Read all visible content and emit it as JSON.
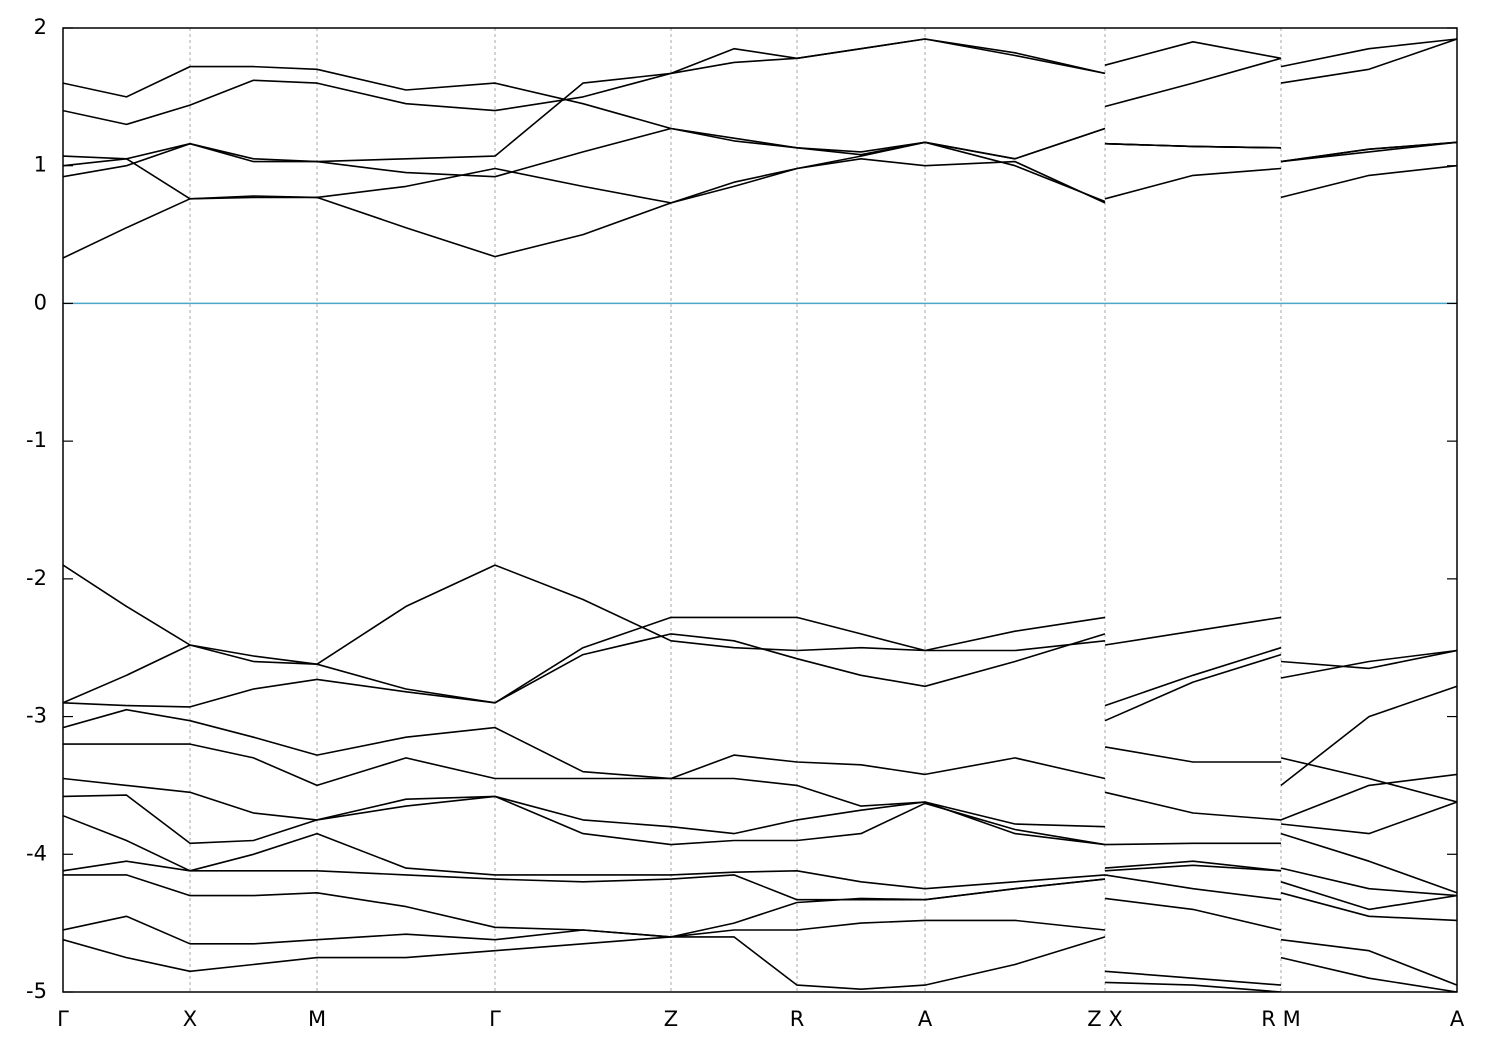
{
  "chart_data": {
    "type": "line",
    "color": "#000000",
    "zero_line_color": "#4aa8c8",
    "grid": true,
    "x": [
      0,
      0.635,
      1.27,
      1.905,
      2.54,
      3.43,
      4.32,
      5.2,
      6.08,
      6.71,
      7.34,
      7.98,
      8.62,
      9.52,
      10.42,
      10.42,
      10.42,
      11.3,
      12.18,
      12.18,
      12.18,
      13.06,
      13.94
    ],
    "xlim": [
      0,
      13.94
    ],
    "ylim": [
      -5,
      2
    ],
    "yticks": [
      -5,
      -4,
      -3,
      -2,
      -1,
      0,
      1,
      2
    ],
    "xticks": [
      {
        "value": 0,
        "label": "Γ"
      },
      {
        "value": 1.27,
        "label": "X"
      },
      {
        "value": 2.54,
        "label": "M"
      },
      {
        "value": 4.32,
        "label": "Γ"
      },
      {
        "value": 6.08,
        "label": "Z"
      },
      {
        "value": 7.34,
        "label": "R"
      },
      {
        "value": 8.62,
        "label": "A"
      },
      {
        "value": 10.42,
        "label": "Z X"
      },
      {
        "value": 12.18,
        "label": "R M"
      },
      {
        "value": 13.94,
        "label": "A"
      }
    ],
    "series": [
      {
        "values": [
          0.33,
          0.55,
          0.76,
          0.77,
          0.77,
          0.55,
          0.34,
          0.5,
          0.73,
          0.85,
          0.98,
          1.05,
          1.0,
          1.03,
          0.73,
          null,
          0.76,
          0.93,
          0.98,
          null,
          0.77,
          0.93,
          1.0
        ]
      },
      {
        "values": [
          0.92,
          1.0,
          1.16,
          1.03,
          1.03,
          0.95,
          0.92,
          1.1,
          1.27,
          1.18,
          1.13,
          1.08,
          1.17,
          1.05,
          1.27,
          null,
          1.16,
          1.14,
          1.13,
          null,
          1.03,
          1.12,
          1.17
        ]
      },
      {
        "values": [
          1.0,
          1.05,
          0.76,
          0.78,
          0.77,
          0.85,
          0.98,
          0.85,
          0.73,
          0.88,
          0.98,
          1.07,
          1.17,
          1.0,
          0.74,
          null,
          1.16,
          1.14,
          1.13,
          null,
          1.03,
          1.1,
          1.17
        ]
      },
      {
        "values": [
          1.07,
          1.05,
          1.16,
          1.05,
          1.03,
          1.05,
          1.07,
          1.6,
          1.67,
          1.75,
          1.78,
          1.85,
          1.92,
          1.82,
          1.67,
          null,
          1.43,
          1.6,
          1.78,
          null,
          1.6,
          1.7,
          1.92
        ]
      },
      {
        "values": [
          1.4,
          1.3,
          1.44,
          1.62,
          1.6,
          1.45,
          1.4,
          1.5,
          1.67,
          1.85,
          1.78,
          1.85,
          1.92,
          1.8,
          1.67,
          null,
          1.73,
          1.9,
          1.78,
          null,
          1.72,
          1.85,
          1.92
        ]
      },
      {
        "values": [
          1.6,
          1.5,
          1.72,
          1.72,
          1.7,
          1.55,
          1.6,
          1.45,
          1.27,
          1.2,
          1.13,
          1.1,
          1.17,
          1.05,
          1.27,
          null,
          1.16,
          1.14,
          1.13,
          null,
          1.03,
          1.12,
          1.17
        ]
      },
      {
        "values": [
          -1.9,
          -2.2,
          -2.48,
          -2.56,
          -2.62,
          -2.2,
          -1.9,
          -2.15,
          -2.45,
          -2.5,
          -2.52,
          -2.5,
          -2.52,
          -2.38,
          -2.28,
          null,
          -2.48,
          -2.38,
          -2.28,
          null,
          -2.6,
          -2.65,
          -2.52
        ]
      },
      {
        "values": [
          -2.9,
          -2.7,
          -2.48,
          -2.6,
          -2.62,
          -2.8,
          -2.9,
          -2.5,
          -2.28,
          -2.28,
          -2.28,
          -2.4,
          -2.52,
          -2.52,
          -2.45,
          null,
          -2.92,
          -2.7,
          -2.5,
          null,
          -2.72,
          -2.6,
          -2.52
        ]
      },
      {
        "values": [
          -2.9,
          -2.92,
          -2.93,
          -2.8,
          -2.73,
          -2.82,
          -2.9,
          -2.55,
          -2.4,
          -2.45,
          -2.58,
          -2.7,
          -2.78,
          -2.6,
          -2.4,
          null,
          -3.03,
          -2.75,
          -2.55,
          null,
          -3.5,
          -3.0,
          -2.78
        ]
      },
      {
        "values": [
          -3.08,
          -2.95,
          -3.03,
          -3.15,
          -3.28,
          -3.15,
          -3.08,
          -3.4,
          -3.45,
          -3.28,
          -3.33,
          -3.35,
          -3.42,
          -3.3,
          -3.45,
          null,
          -3.22,
          -3.33,
          -3.33,
          null,
          -3.3,
          -3.45,
          -3.62
        ]
      },
      {
        "values": [
          -3.2,
          -3.2,
          -3.2,
          -3.3,
          -3.5,
          -3.3,
          -3.45,
          -3.45,
          -3.45,
          -3.45,
          -3.5,
          -3.65,
          -3.62,
          -3.78,
          -3.8,
          null,
          -3.55,
          -3.7,
          -3.75,
          null,
          -3.75,
          -3.5,
          -3.42
        ]
      },
      {
        "values": [
          -3.45,
          -3.5,
          -3.55,
          -3.7,
          -3.75,
          -3.6,
          -3.58,
          -3.75,
          -3.8,
          -3.85,
          -3.75,
          -3.68,
          -3.62,
          -3.85,
          -3.93,
          null,
          -3.93,
          -3.92,
          -3.92,
          null,
          -3.78,
          -3.85,
          -3.62
        ]
      },
      {
        "values": [
          -3.58,
          -3.57,
          -3.92,
          -3.9,
          -3.75,
          -3.65,
          -3.58,
          -3.85,
          -3.93,
          -3.9,
          -3.9,
          -3.85,
          -3.63,
          -3.82,
          -3.93,
          null,
          -4.1,
          -4.05,
          -4.12,
          null,
          -3.85,
          -4.05,
          -4.28
        ]
      },
      {
        "values": [
          -3.72,
          -3.9,
          -4.12,
          -4.0,
          -3.85,
          -4.1,
          -4.15,
          -4.15,
          -4.15,
          -4.13,
          -4.12,
          -4.2,
          -4.25,
          -4.2,
          -4.15,
          null,
          -4.15,
          -4.25,
          -4.33,
          null,
          -4.1,
          -4.25,
          -4.3
        ]
      },
      {
        "values": [
          -4.12,
          -4.05,
          -4.12,
          -4.12,
          -4.12,
          -4.15,
          -4.18,
          -4.2,
          -4.18,
          -4.15,
          -4.33,
          -4.33,
          -4.33,
          -4.25,
          -4.18,
          null,
          -4.32,
          -4.4,
          -4.55,
          null,
          -4.28,
          -4.45,
          -4.48
        ]
      },
      {
        "values": [
          -4.15,
          -4.15,
          -4.3,
          -4.3,
          -4.28,
          -4.38,
          -4.53,
          -4.55,
          -4.6,
          -4.55,
          -4.55,
          -4.5,
          -4.48,
          -4.48,
          -4.55,
          null,
          -4.85,
          -4.9,
          -4.95,
          null,
          -4.62,
          -4.7,
          -4.95
        ]
      },
      {
        "values": [
          -4.55,
          -4.45,
          -4.65,
          -4.65,
          -4.62,
          -4.58,
          -4.62,
          -4.55,
          -4.6,
          -4.6,
          -4.95,
          -4.98,
          -4.95,
          -4.8,
          -4.6,
          null,
          -4.93,
          -4.95,
          -5.0,
          null,
          -4.75,
          -4.9,
          -5.0
        ]
      },
      {
        "values": [
          -4.62,
          -4.75,
          -4.85,
          -4.8,
          -4.75,
          -4.75,
          -4.7,
          -4.65,
          -4.6,
          -4.5,
          -4.35,
          -4.32,
          -4.33,
          -4.25,
          -4.18,
          null,
          -4.12,
          -4.08,
          -4.12,
          null,
          -4.2,
          -4.4,
          -4.3
        ]
      }
    ]
  }
}
